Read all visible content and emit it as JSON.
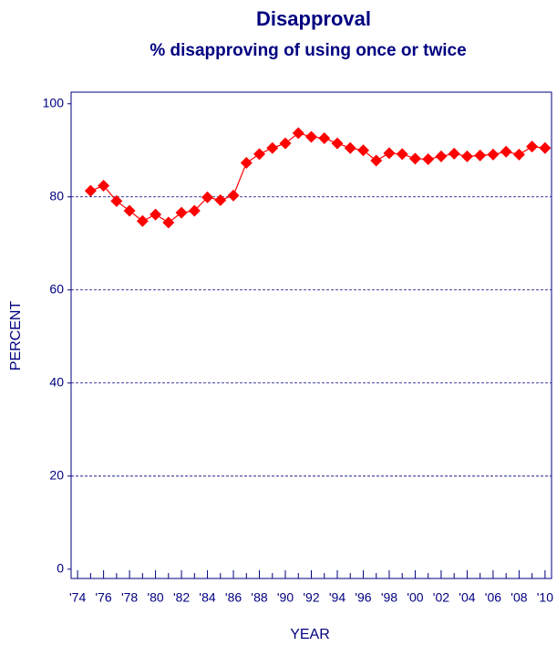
{
  "chart_data": {
    "type": "line",
    "title": "Disapproval",
    "subtitle": "% disapproving of using once or twice",
    "xlabel": "YEAR",
    "ylabel": "PERCENT",
    "x": [
      1975,
      1976,
      1977,
      1978,
      1979,
      1980,
      1981,
      1982,
      1983,
      1984,
      1985,
      1986,
      1987,
      1988,
      1989,
      1990,
      1991,
      1992,
      1993,
      1994,
      1995,
      1996,
      1997,
      1998,
      1999,
      2000,
      2001,
      2002,
      2003,
      2004,
      2005,
      2006,
      2007,
      2008,
      2009,
      2010
    ],
    "series": [
      {
        "name": "Disapproval",
        "color": "#ff0000",
        "values": [
          81.3,
          82.4,
          79.1,
          77.0,
          74.8,
          76.2,
          74.5,
          76.6,
          77.0,
          79.9,
          79.3,
          80.3,
          87.3,
          89.2,
          90.5,
          91.5,
          93.7,
          92.9,
          92.6,
          91.5,
          90.5,
          90.0,
          87.8,
          89.4,
          89.2,
          88.2,
          88.1,
          88.7,
          89.3,
          88.7,
          88.9,
          89.1,
          89.7,
          89.1,
          90.8,
          90.5
        ]
      }
    ],
    "xlim": [
      1973.5,
      2010.5
    ],
    "xticks": [
      {
        "value": 1974,
        "label": "'74"
      },
      {
        "value": 1976,
        "label": "'76"
      },
      {
        "value": 1978,
        "label": "'78"
      },
      {
        "value": 1980,
        "label": "'80"
      },
      {
        "value": 1982,
        "label": "'82"
      },
      {
        "value": 1984,
        "label": "'84"
      },
      {
        "value": 1986,
        "label": "'86"
      },
      {
        "value": 1988,
        "label": "'88"
      },
      {
        "value": 1990,
        "label": "'90"
      },
      {
        "value": 1992,
        "label": "'92"
      },
      {
        "value": 1994,
        "label": "'94"
      },
      {
        "value": 1996,
        "label": "'96"
      },
      {
        "value": 1998,
        "label": "'98"
      },
      {
        "value": 2000,
        "label": "'00"
      },
      {
        "value": 2002,
        "label": "'02"
      },
      {
        "value": 2004,
        "label": "'04"
      },
      {
        "value": 2006,
        "label": "'06"
      },
      {
        "value": 2008,
        "label": "'08"
      },
      {
        "value": 2010,
        "label": "'10"
      }
    ],
    "xminorticks": [
      1975,
      1977,
      1979,
      1981,
      1983,
      1985,
      1987,
      1989,
      1991,
      1993,
      1995,
      1997,
      1999,
      2001,
      2003,
      2005,
      2007,
      2009
    ],
    "ylim": [
      -2,
      102.5
    ],
    "yticks": [
      0,
      20,
      40,
      60,
      80,
      100
    ],
    "grid": true
  }
}
